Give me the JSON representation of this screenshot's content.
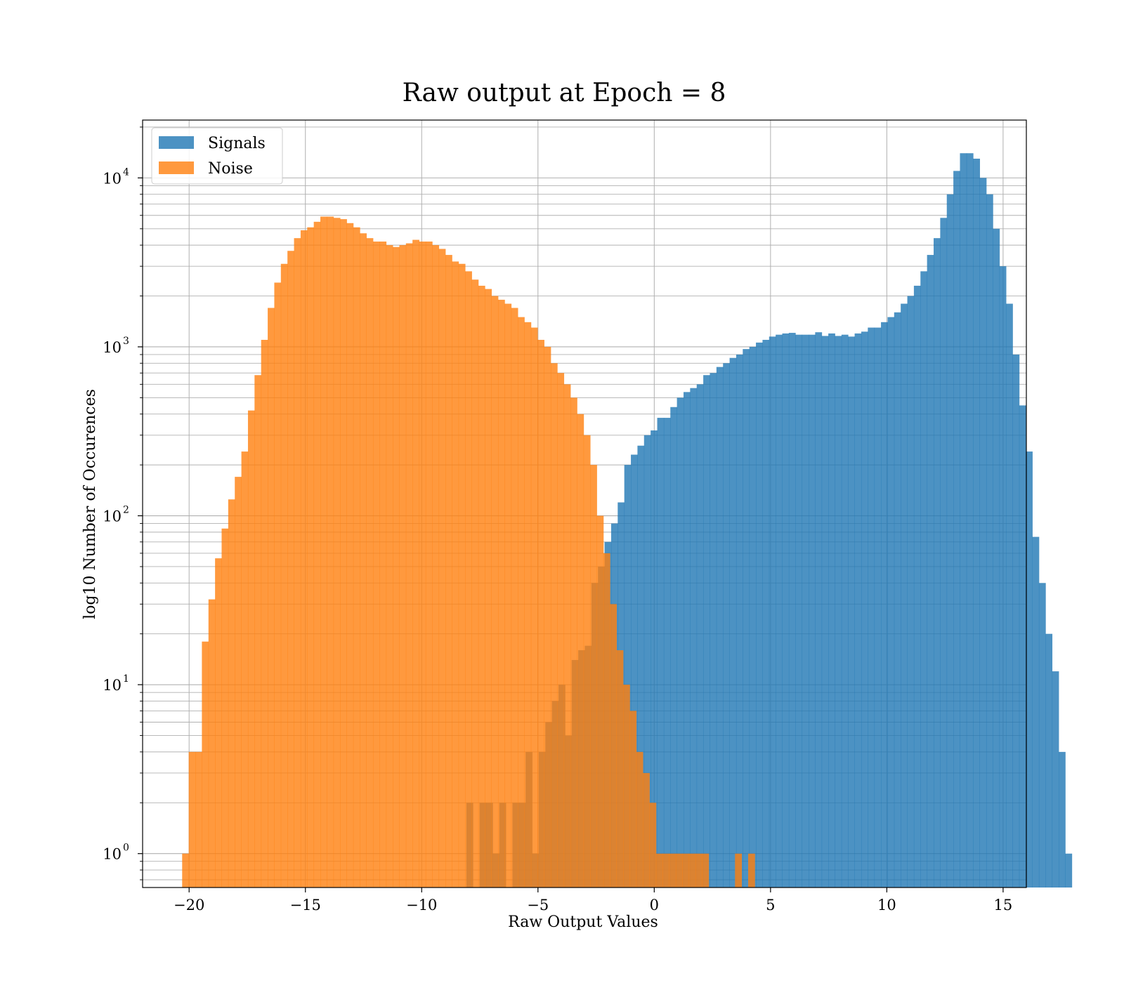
{
  "chart_data": {
    "type": "histogram",
    "title": "Raw output at Epoch = 8",
    "xlabel": "Raw Output Values",
    "ylabel": "log10 Number of Occurences",
    "xlim": [
      -22,
      16
    ],
    "ylim": [
      0.63,
      22000
    ],
    "yscale": "log",
    "grid": true,
    "legend_position": "top-left",
    "x_ticks": [
      -20,
      -15,
      -10,
      -5,
      0,
      5,
      10,
      15
    ],
    "x_tick_labels": [
      "−20",
      "−15",
      "−10",
      "−5",
      "0",
      "5",
      "10",
      "15"
    ],
    "y_ticks": [
      {
        "value": 1,
        "base": "10",
        "exp": "0"
      },
      {
        "value": 10,
        "base": "10",
        "exp": "1"
      },
      {
        "value": 100,
        "base": "10",
        "exp": "2"
      },
      {
        "value": 1000,
        "base": "10",
        "exp": "3"
      },
      {
        "value": 10000,
        "base": "10",
        "exp": "4"
      }
    ],
    "series": [
      {
        "name": "Signals",
        "color": "#1f77b4",
        "opacity": 0.8,
        "bin_start": -8.08,
        "bin_width": 0.283,
        "counts": [
          2,
          0,
          2,
          2,
          1,
          2,
          0,
          2,
          2,
          4,
          1,
          4,
          6,
          8,
          10,
          5,
          14,
          16,
          17,
          40,
          50,
          70,
          90,
          120,
          200,
          230,
          260,
          300,
          320,
          380,
          380,
          440,
          500,
          540,
          570,
          600,
          680,
          700,
          760,
          800,
          860,
          900,
          970,
          1000,
          1060,
          1100,
          1150,
          1180,
          1200,
          1210,
          1180,
          1180,
          1180,
          1220,
          1160,
          1200,
          1160,
          1180,
          1150,
          1200,
          1230,
          1300,
          1300,
          1400,
          1500,
          1600,
          1800,
          2000,
          2300,
          2800,
          3500,
          4400,
          5800,
          8000,
          11000,
          14000,
          14000,
          13000,
          10000,
          8000,
          5000,
          3000,
          1800,
          900,
          450,
          240,
          75,
          40,
          20,
          12,
          4,
          1
        ]
      },
      {
        "name": "Noise",
        "color": "#ff7f0e",
        "opacity": 0.8,
        "bin_start": -20.3,
        "bin_width": 0.283,
        "counts": [
          1,
          4,
          4,
          18,
          32,
          56,
          84,
          125,
          170,
          240,
          420,
          680,
          1100,
          1700,
          2400,
          3100,
          3700,
          4400,
          4900,
          5100,
          5500,
          5900,
          5900,
          5800,
          5700,
          5400,
          5100,
          4700,
          4400,
          4200,
          4200,
          4000,
          3900,
          4000,
          4100,
          4300,
          4200,
          4200,
          4000,
          3800,
          3500,
          3200,
          3100,
          2800,
          2500,
          2300,
          2200,
          2000,
          1900,
          1800,
          1700,
          1500,
          1400,
          1300,
          1100,
          1000,
          800,
          700,
          600,
          500,
          400,
          300,
          200,
          100,
          60,
          30,
          16,
          10,
          7,
          4,
          3,
          2,
          1,
          1,
          1,
          1,
          1,
          1,
          1,
          1,
          0,
          0,
          0,
          0,
          1,
          0,
          1
        ]
      }
    ]
  }
}
